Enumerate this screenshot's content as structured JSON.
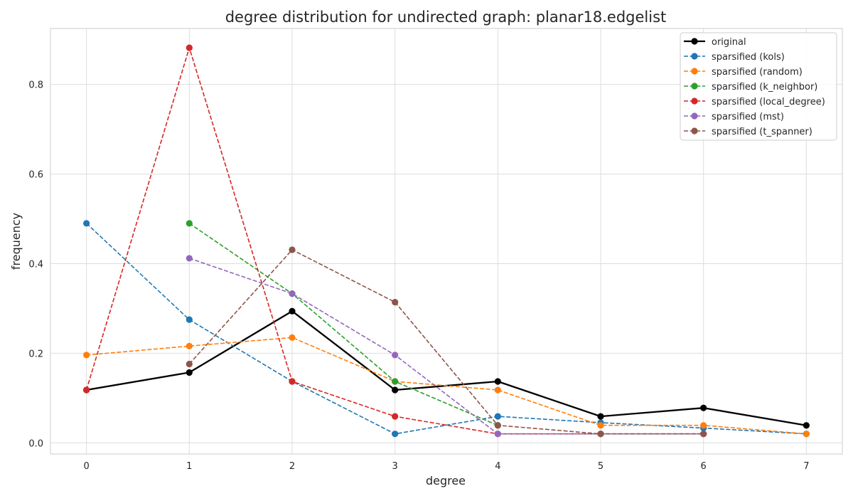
{
  "chart_data": {
    "type": "line",
    "title": "degree distribution for undirected graph: planar18.edgelist",
    "xlabel": "degree",
    "ylabel": "frequency",
    "xlim": [
      -0.35,
      7.35
    ],
    "ylim": [
      -0.025,
      0.925
    ],
    "xticks": [
      0,
      1,
      2,
      3,
      4,
      5,
      6,
      7
    ],
    "yticks": [
      0.0,
      0.2,
      0.4,
      0.6,
      0.8
    ],
    "ytick_labels": [
      "0.0",
      "0.2",
      "0.4",
      "0.6",
      "0.8"
    ],
    "grid": true,
    "legend_position": "top-right",
    "series": [
      {
        "name": "original",
        "color": "#000000",
        "style": "solid",
        "points": [
          [
            0,
            0.118
          ],
          [
            1,
            0.157
          ],
          [
            2,
            0.294
          ],
          [
            3,
            0.118
          ],
          [
            4,
            0.137
          ],
          [
            5,
            0.059
          ],
          [
            6,
            0.078
          ],
          [
            7,
            0.039
          ]
        ]
      },
      {
        "name": "sparsified (kols)",
        "color": "#1f77b4",
        "style": "dashed",
        "points": [
          [
            0,
            0.49
          ],
          [
            1,
            0.275
          ],
          [
            2,
            0.137
          ],
          [
            3,
            0.02
          ],
          [
            4,
            0.059
          ],
          [
            5,
            0.045
          ],
          [
            6,
            0.033
          ],
          [
            7,
            0.02
          ]
        ]
      },
      {
        "name": "sparsified (random)",
        "color": "#ff7f0e",
        "style": "dashed",
        "points": [
          [
            0,
            0.196
          ],
          [
            1,
            0.216
          ],
          [
            2,
            0.235
          ],
          [
            3,
            0.137
          ],
          [
            4,
            0.118
          ],
          [
            5,
            0.039
          ],
          [
            6,
            0.039
          ],
          [
            7,
            0.02
          ]
        ]
      },
      {
        "name": "sparsified (k_neighbor)",
        "color": "#2ca02c",
        "style": "dashed",
        "points": [
          [
            1,
            0.49
          ],
          [
            2,
            0.333
          ],
          [
            3,
            0.137
          ],
          [
            4,
            0.039
          ]
        ]
      },
      {
        "name": "sparsified (local_degree)",
        "color": "#d62728",
        "style": "dashed",
        "points": [
          [
            0,
            0.118
          ],
          [
            1,
            0.882
          ],
          [
            2,
            0.137
          ],
          [
            3,
            0.059
          ],
          [
            4,
            0.02
          ],
          [
            5,
            0.02
          ],
          [
            6,
            0.02
          ]
        ]
      },
      {
        "name": "sparsified (mst)",
        "color": "#9467bd",
        "style": "dashed",
        "points": [
          [
            1,
            0.412
          ],
          [
            2,
            0.333
          ],
          [
            3,
            0.196
          ],
          [
            4,
            0.02
          ],
          [
            5,
            0.02
          ],
          [
            6,
            0.02
          ]
        ]
      },
      {
        "name": "sparsified (t_spanner)",
        "color": "#8c564b",
        "style": "dashed",
        "points": [
          [
            1,
            0.176
          ],
          [
            2,
            0.431
          ],
          [
            3,
            0.314
          ],
          [
            4,
            0.039
          ],
          [
            5,
            0.02
          ],
          [
            6,
            0.02
          ]
        ]
      }
    ]
  }
}
